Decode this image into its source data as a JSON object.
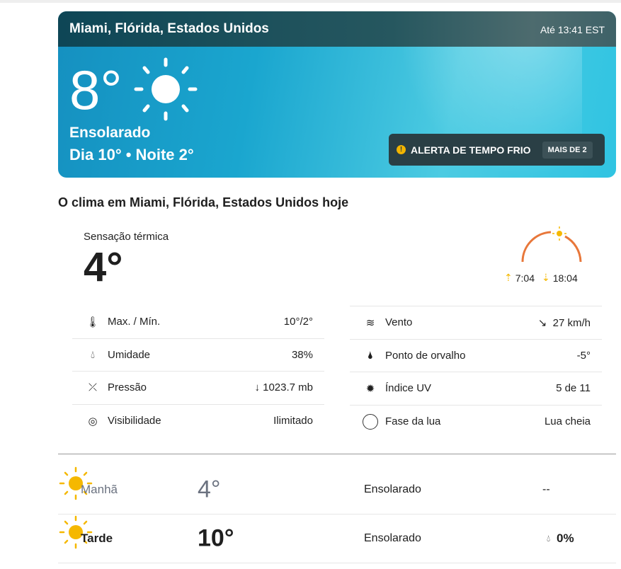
{
  "header": {
    "location": "Miami, Flórida, Estados Unidos",
    "updated": "Até 13:41 EST"
  },
  "current": {
    "temp": "8°",
    "condition": "Ensolarado",
    "day_night": "Dia 10° • Noite 2°",
    "icon": "sun-icon"
  },
  "alert": {
    "label": "ALERTA DE TEMPO FRIO",
    "more": "MAIS DE 2"
  },
  "today": {
    "title": "O clima em Miami, Flórida, Estados Unidos hoje",
    "feels_label": "Sensação térmica",
    "feels_value": "4°",
    "sunrise": "7:04",
    "sunset": "18:04"
  },
  "details_left": [
    {
      "label": "Max. / Mín.",
      "value": "10°/2°",
      "icon": "thermometer-icon"
    },
    {
      "label": "Umidade",
      "value": "38%",
      "icon": "drop-icon"
    },
    {
      "label": "Pressão",
      "value": "↓ 1023.7 mb",
      "icon": "pressure-icon"
    },
    {
      "label": "Visibilidade",
      "value": "Ilimitado",
      "icon": "eye-icon"
    }
  ],
  "details_right": [
    {
      "label": "Vento",
      "value": "↘  27 km/h",
      "icon": "wind-icon"
    },
    {
      "label": "Ponto de orvalho",
      "value": "-5°",
      "icon": "dewpoint-icon"
    },
    {
      "label": "Índice UV",
      "value": "5 de 11",
      "icon": "uv-icon"
    },
    {
      "label": "Fase da lua",
      "value": "Lua cheia",
      "icon": "moon-full-icon"
    }
  ],
  "periods": [
    {
      "name": "Manhã",
      "temp": "4°",
      "condition": "Ensolarado",
      "precip": "--"
    },
    {
      "name": "Tarde",
      "temp": "10°",
      "condition": "Ensolarado",
      "precip": "0%"
    }
  ],
  "colors": {
    "accent_orange": "#e8773a",
    "sun_yellow": "#f5b800",
    "alert_bg": "#2a3f45"
  }
}
